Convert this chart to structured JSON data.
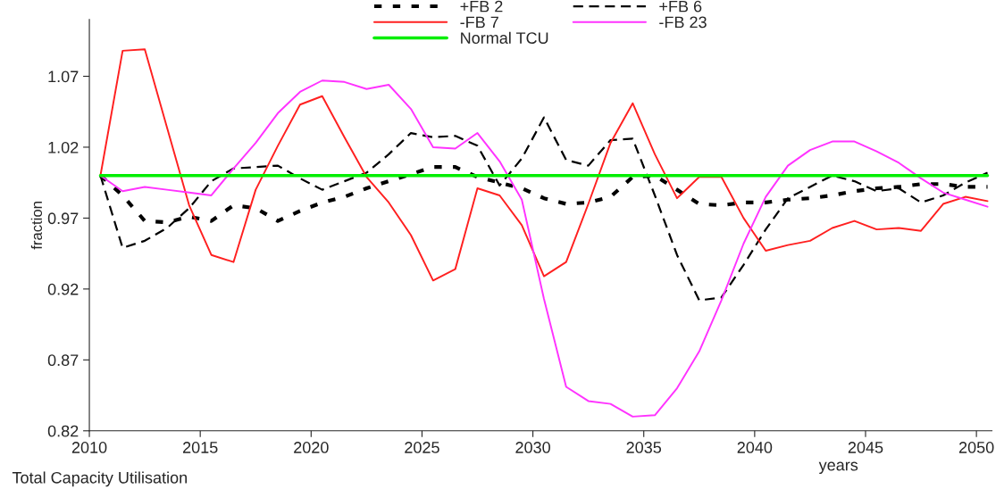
{
  "chart_data": {
    "type": "line",
    "ylabel": "fraction",
    "xlabel": "years",
    "annotations": [
      "Total Capacity Utilisation"
    ],
    "x": [
      2010.5,
      2011.5,
      2012.5,
      2013.5,
      2014.5,
      2015.5,
      2016.5,
      2017.5,
      2018.5,
      2019.5,
      2020.5,
      2021.5,
      2022.5,
      2023.5,
      2024.5,
      2025.5,
      2026.5,
      2027.5,
      2028.5,
      2029.5,
      2030.5,
      2031.5,
      2032.5,
      2033.5,
      2034.5,
      2035.5,
      2036.5,
      2037.5,
      2038.5,
      2039.5,
      2040.5,
      2041.5,
      2042.5,
      2043.5,
      2044.5,
      2045.5,
      2046.5,
      2047.5,
      2048.5,
      2049.5,
      2050.5
    ],
    "series": [
      {
        "name": "+FB 2",
        "color": "#000000",
        "line_style": "dotted",
        "values": [
          1.0,
          0.986,
          0.968,
          0.967,
          0.971,
          0.968,
          0.979,
          0.977,
          0.968,
          0.975,
          0.981,
          0.985,
          0.991,
          0.996,
          1.001,
          1.006,
          1.006,
          0.999,
          0.995,
          0.991,
          0.984,
          0.98,
          0.981,
          0.985,
          0.999,
          1.0,
          0.99,
          0.98,
          0.979,
          0.981,
          0.981,
          0.983,
          0.984,
          0.986,
          0.989,
          0.991,
          0.992,
          0.994,
          0.994,
          0.992,
          0.992
        ]
      },
      {
        "name": "+FB 6",
        "color": "#000000",
        "line_style": "dashed",
        "values": [
          1.0,
          0.949,
          0.954,
          0.963,
          0.977,
          0.996,
          1.005,
          1.006,
          1.007,
          0.998,
          0.99,
          0.996,
          1.002,
          1.015,
          1.03,
          1.027,
          1.028,
          1.021,
          0.993,
          1.012,
          1.041,
          1.011,
          1.007,
          1.025,
          1.026,
          0.986,
          0.944,
          0.912,
          0.914,
          0.937,
          0.962,
          0.984,
          0.992,
          1.0,
          0.996,
          0.989,
          0.991,
          0.981,
          0.986,
          0.995,
          1.002
        ]
      },
      {
        "name": "-FB 7",
        "color": "#ff2020",
        "line_style": "solid",
        "values": [
          1.0,
          1.088,
          1.089,
          1.034,
          0.979,
          0.944,
          0.939,
          0.99,
          1.021,
          1.05,
          1.056,
          1.027,
          0.999,
          0.981,
          0.958,
          0.926,
          0.934,
          0.991,
          0.986,
          0.965,
          0.929,
          0.939,
          0.98,
          1.023,
          1.051,
          1.015,
          0.984,
          0.999,
          0.999,
          0.97,
          0.947,
          0.951,
          0.954,
          0.963,
          0.968,
          0.962,
          0.963,
          0.961,
          0.98,
          0.985,
          0.982
        ]
      },
      {
        "name": "-FB 23",
        "color": "#ff33ff",
        "line_style": "solid",
        "values": [
          1.0,
          0.989,
          0.992,
          0.99,
          0.988,
          0.986,
          1.005,
          1.023,
          1.044,
          1.059,
          1.067,
          1.066,
          1.061,
          1.064,
          1.047,
          1.02,
          1.019,
          1.03,
          1.01,
          0.983,
          0.913,
          0.851,
          0.841,
          0.839,
          0.83,
          0.831,
          0.85,
          0.876,
          0.912,
          0.952,
          0.985,
          1.007,
          1.018,
          1.024,
          1.024,
          1.017,
          1.009,
          0.998,
          0.988,
          0.983,
          0.978
        ]
      },
      {
        "name": "Normal TCU",
        "color": "#00ee00",
        "line_style": "solid",
        "values": [
          1.0,
          1.0,
          1.0,
          1.0,
          1.0,
          1.0,
          1.0,
          1.0,
          1.0,
          1.0,
          1.0,
          1.0,
          1.0,
          1.0,
          1.0,
          1.0,
          1.0,
          1.0,
          1.0,
          1.0,
          1.0,
          1.0,
          1.0,
          1.0,
          1.0,
          1.0,
          1.0,
          1.0,
          1.0,
          1.0,
          1.0,
          1.0,
          1.0,
          1.0,
          1.0,
          1.0,
          1.0,
          1.0,
          1.0,
          1.0,
          1.0
        ]
      }
    ],
    "xlim": [
      2010,
      2050.7
    ],
    "xticks": [
      2010,
      2015,
      2020,
      2025,
      2030,
      2035,
      2040,
      2045,
      2050
    ],
    "ylim": [
      0.82,
      1.11
    ],
    "yticks": [
      0.82,
      0.87,
      0.92,
      0.97,
      1.02,
      1.07
    ],
    "legend": "top",
    "grid": false
  }
}
